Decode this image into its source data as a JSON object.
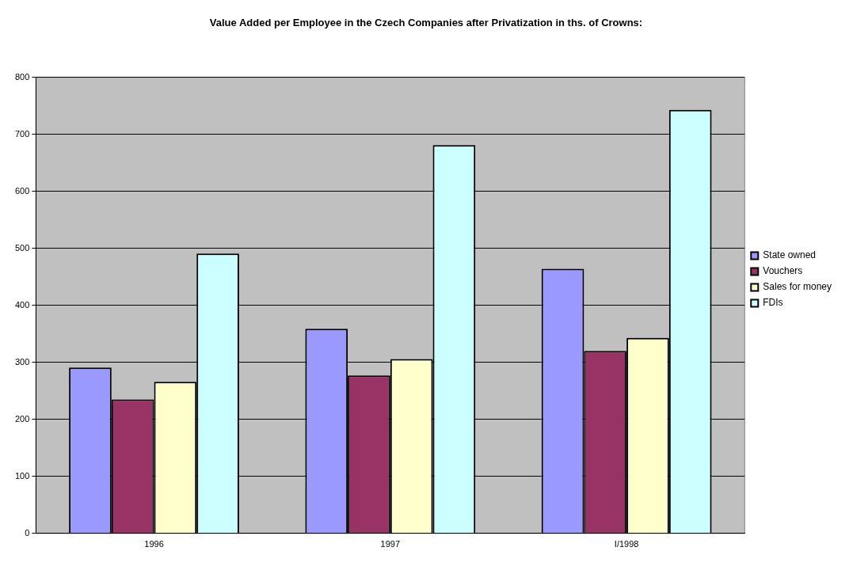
{
  "chart_data": {
    "type": "bar",
    "title": "Value Added per Employee in the Czech Companies after Privatization in ths. of Crowns:",
    "categories": [
      "1996",
      "1997",
      "I/1998"
    ],
    "series": [
      {
        "name": "State owned",
        "color": "#9999ff",
        "values": [
          291,
          359,
          464
        ]
      },
      {
        "name": "Vouchers",
        "color": "#993366",
        "values": [
          235,
          277,
          320
        ]
      },
      {
        "name": "Sales for money",
        "color": "#ffffcc",
        "values": [
          266,
          306,
          343
        ]
      },
      {
        "name": "FDIs",
        "color": "#ccffff",
        "values": [
          491,
          681,
          743
        ]
      }
    ],
    "ylim": [
      0,
      800
    ],
    "yticks": [
      0,
      100,
      200,
      300,
      400,
      500,
      600,
      700,
      800
    ],
    "grid": "y",
    "legend": "right"
  }
}
